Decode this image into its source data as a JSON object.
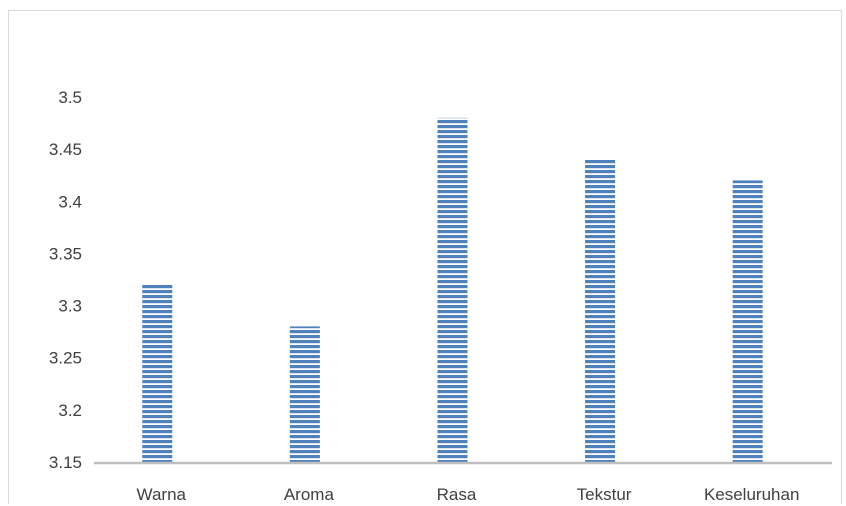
{
  "chart_data": {
    "type": "bar",
    "categories": [
      "Warna",
      "Aroma",
      "Rasa",
      "Tekstur",
      "Keseluruhan"
    ],
    "values": [
      3.32,
      3.28,
      3.48,
      3.44,
      3.42
    ],
    "title": "",
    "xlabel": "",
    "ylabel": "",
    "ylim": [
      3.15,
      3.5
    ],
    "yticks": [
      "3.15",
      "3.2",
      "3.25",
      "3.3",
      "3.35",
      "3.4",
      "3.45",
      "3.5"
    ],
    "grid": false,
    "legend": "none",
    "bar_color": "#4f81bd",
    "bar_stripe_color": "#ffffff",
    "axis_color": "#bfbfbf"
  }
}
